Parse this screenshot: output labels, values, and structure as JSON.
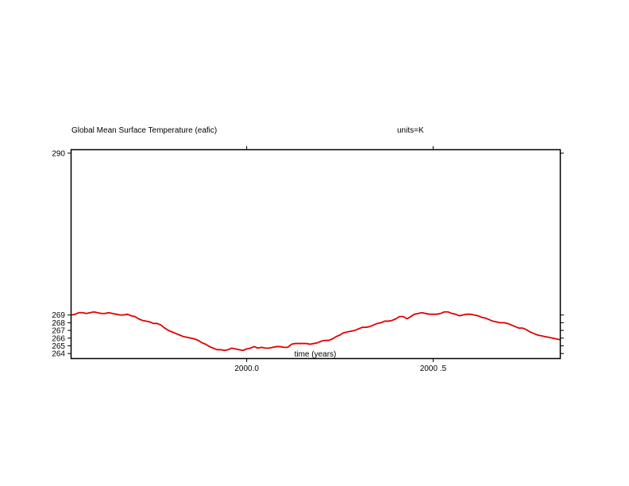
{
  "chart_data": {
    "type": "line",
    "title": "Global Mean Surface Temperature (eafic)",
    "units_label": "units=K",
    "xlabel": "time (years)",
    "ylabel": "",
    "xlim": [
      1999.53,
      2000.84
    ],
    "ylim": [
      263.4,
      290.4
    ],
    "x_ticks": [
      2000.0,
      2000.5
    ],
    "x_tick_labels": [
      "2000.0",
      "2000 .5"
    ],
    "y_ticks": [
      264,
      265,
      266,
      267,
      268,
      269,
      290
    ],
    "y_tick_labels": [
      "264",
      "265",
      "266",
      "267",
      "268",
      "269",
      "290"
    ],
    "grid": false,
    "series": [
      {
        "color": "#e00000",
        "x": [
          1999.53,
          1999.54,
          1999.55,
          1999.56,
          1999.57,
          1999.58,
          1999.59,
          1999.6,
          1999.61,
          1999.62,
          1999.63,
          1999.64,
          1999.65,
          1999.66,
          1999.67,
          1999.68,
          1999.69,
          1999.7,
          1999.71,
          1999.72,
          1999.73,
          1999.74,
          1999.75,
          1999.76,
          1999.77,
          1999.78,
          1999.79,
          1999.8,
          1999.81,
          1999.82,
          1999.83,
          1999.84,
          1999.85,
          1999.86,
          1999.87,
          1999.88,
          1999.89,
          1999.9,
          1999.91,
          1999.92,
          1999.93,
          1999.94,
          1999.95,
          1999.96,
          1999.97,
          1999.98,
          1999.99,
          2000.0,
          2000.01,
          2000.02,
          2000.03,
          2000.04,
          2000.05,
          2000.06,
          2000.07,
          2000.08,
          2000.09,
          2000.1,
          2000.11,
          2000.12,
          2000.13,
          2000.14,
          2000.15,
          2000.16,
          2000.17,
          2000.18,
          2000.19,
          2000.2,
          2000.21,
          2000.22,
          2000.23,
          2000.24,
          2000.25,
          2000.26,
          2000.27,
          2000.28,
          2000.29,
          2000.3,
          2000.31,
          2000.32,
          2000.33,
          2000.34,
          2000.35,
          2000.36,
          2000.37,
          2000.38,
          2000.39,
          2000.4,
          2000.41,
          2000.42,
          2000.43,
          2000.44,
          2000.45,
          2000.46,
          2000.47,
          2000.48,
          2000.49,
          2000.5,
          2000.51,
          2000.52,
          2000.53,
          2000.54,
          2000.55,
          2000.56,
          2000.57,
          2000.58,
          2000.59,
          2000.6,
          2000.61,
          2000.62,
          2000.63,
          2000.64,
          2000.65,
          2000.66,
          2000.67,
          2000.68,
          2000.69,
          2000.7,
          2000.71,
          2000.72,
          2000.73,
          2000.74,
          2000.75,
          2000.76,
          2000.77,
          2000.78,
          2000.79,
          2000.8,
          2000.81,
          2000.82,
          2000.83,
          2000.84
        ],
        "y": [
          269.0,
          269.1,
          269.3,
          269.3,
          269.2,
          269.3,
          269.4,
          269.3,
          269.2,
          269.2,
          269.3,
          269.2,
          269.1,
          269.0,
          269.0,
          269.1,
          268.9,
          268.8,
          268.5,
          268.3,
          268.2,
          268.1,
          267.9,
          267.9,
          267.7,
          267.3,
          267.0,
          266.8,
          266.6,
          266.4,
          266.2,
          266.1,
          266.0,
          265.9,
          265.7,
          265.4,
          265.2,
          264.9,
          264.7,
          264.5,
          264.5,
          264.4,
          264.5,
          264.7,
          264.6,
          264.5,
          264.4,
          264.6,
          264.7,
          264.9,
          264.7,
          264.8,
          264.7,
          264.7,
          264.8,
          264.9,
          264.9,
          264.8,
          264.8,
          265.2,
          265.3,
          265.3,
          265.3,
          265.3,
          265.2,
          265.3,
          265.4,
          265.6,
          265.7,
          265.7,
          265.9,
          266.2,
          266.4,
          266.7,
          266.8,
          266.9,
          267.0,
          267.2,
          267.4,
          267.4,
          267.5,
          267.7,
          267.9,
          268.0,
          268.2,
          268.2,
          268.3,
          268.5,
          268.8,
          268.8,
          268.5,
          268.8,
          269.1,
          269.2,
          269.3,
          269.2,
          269.1,
          269.1,
          269.1,
          269.2,
          269.4,
          269.4,
          269.2,
          269.1,
          268.9,
          269.0,
          269.1,
          269.1,
          269.0,
          268.9,
          268.7,
          268.6,
          268.4,
          268.2,
          268.1,
          268.0,
          268.0,
          267.9,
          267.7,
          267.5,
          267.3,
          267.3,
          267.1,
          266.8,
          266.6,
          266.4,
          266.3,
          266.2,
          266.1,
          266.0,
          265.9,
          265.8
        ]
      }
    ]
  }
}
